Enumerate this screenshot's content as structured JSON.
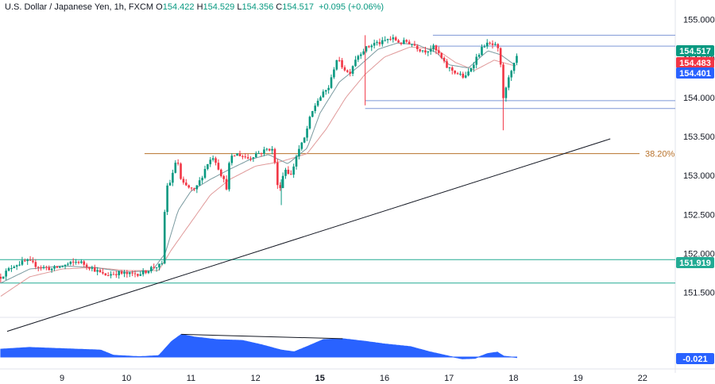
{
  "header": {
    "symbol": "U.S. Dollar / Japanese Yen, 1h, FXCM",
    "open_label": "O",
    "open": "154.422",
    "high_label": "H",
    "high": "154.529",
    "low_label": "L",
    "low": "154.356",
    "close_label": "C",
    "close": "154.517",
    "change": "+0.095 (+0.06%)"
  },
  "chart_data": {
    "type": "candlestick",
    "title": "U.S. Dollar / Japanese Yen, 1h, FXCM",
    "ylim": [
      151.2,
      155.15
    ],
    "y_ticks": [
      155.0,
      154.5,
      154.0,
      153.5,
      153.0,
      152.5,
      152.0,
      151.5
    ],
    "y_tick_labels": [
      "155.000",
      "154.500",
      "154.000",
      "153.500",
      "153.000",
      "152.500",
      "152.000",
      "151.500"
    ],
    "x_ticks": [
      {
        "label": "9",
        "day_index": 0
      },
      {
        "label": "10",
        "day_index": 1
      },
      {
        "label": "11",
        "day_index": 2
      },
      {
        "label": "12",
        "day_index": 3
      },
      {
        "label": "15",
        "day_index": 4,
        "bold": true
      },
      {
        "label": "16",
        "day_index": 5
      },
      {
        "label": "17",
        "day_index": 6
      },
      {
        "label": "18",
        "day_index": 7
      },
      {
        "label": "19",
        "day_index": 8
      },
      {
        "label": "22",
        "day_index": 9
      }
    ],
    "price_path": [
      [
        -0.95,
        151.7
      ],
      [
        -0.75,
        151.85
      ],
      [
        -0.55,
        151.9
      ],
      [
        -0.35,
        151.83
      ],
      [
        -0.15,
        151.8
      ],
      [
        0.05,
        151.85
      ],
      [
        0.25,
        151.9
      ],
      [
        0.45,
        151.82
      ],
      [
        0.65,
        151.72
      ],
      [
        0.85,
        151.75
      ],
      [
        1.05,
        151.73
      ],
      [
        1.25,
        151.75
      ],
      [
        1.4,
        151.82
      ],
      [
        1.55,
        151.85
      ],
      [
        1.58,
        152.4
      ],
      [
        1.62,
        152.85
      ],
      [
        1.7,
        152.95
      ],
      [
        1.78,
        153.25
      ],
      [
        1.85,
        152.9
      ],
      [
        1.95,
        152.85
      ],
      [
        2.05,
        152.8
      ],
      [
        2.15,
        152.95
      ],
      [
        2.25,
        153.15
      ],
      [
        2.35,
        153.25
      ],
      [
        2.45,
        153.05
      ],
      [
        2.55,
        152.85
      ],
      [
        2.6,
        153.2
      ],
      [
        2.7,
        153.28
      ],
      [
        2.8,
        153.25
      ],
      [
        2.9,
        153.22
      ],
      [
        3.0,
        153.28
      ],
      [
        3.1,
        153.3
      ],
      [
        3.2,
        153.35
      ],
      [
        3.28,
        153.32
      ],
      [
        3.35,
        152.8
      ],
      [
        3.4,
        152.9
      ],
      [
        3.45,
        153.1
      ],
      [
        3.55,
        153.0
      ],
      [
        3.65,
        153.3
      ],
      [
        3.75,
        153.45
      ],
      [
        3.85,
        153.75
      ],
      [
        3.95,
        153.95
      ],
      [
        4.05,
        154.05
      ],
      [
        4.15,
        154.15
      ],
      [
        4.25,
        154.5
      ],
      [
        4.35,
        154.4
      ],
      [
        4.45,
        154.3
      ],
      [
        4.55,
        154.5
      ],
      [
        4.65,
        154.6
      ],
      [
        4.75,
        154.65
      ],
      [
        4.85,
        154.7
      ],
      [
        4.95,
        154.7
      ],
      [
        5.05,
        154.75
      ],
      [
        5.15,
        154.75
      ],
      [
        5.25,
        154.7
      ],
      [
        5.35,
        154.72
      ],
      [
        5.45,
        154.68
      ],
      [
        5.55,
        154.62
      ],
      [
        5.65,
        154.6
      ],
      [
        5.75,
        154.65
      ],
      [
        5.85,
        154.55
      ],
      [
        5.95,
        154.4
      ],
      [
        6.05,
        154.35
      ],
      [
        6.15,
        154.3
      ],
      [
        6.25,
        154.25
      ],
      [
        6.35,
        154.4
      ],
      [
        6.45,
        154.55
      ],
      [
        6.55,
        154.68
      ],
      [
        6.65,
        154.68
      ],
      [
        6.75,
        154.65
      ],
      [
        6.8,
        154.4
      ],
      [
        6.85,
        153.92
      ],
      [
        6.9,
        154.2
      ],
      [
        6.95,
        154.35
      ],
      [
        7.0,
        154.4
      ],
      [
        7.05,
        154.52
      ]
    ],
    "sma_fast_path": [
      [
        -0.95,
        151.62
      ],
      [
        -0.5,
        151.8
      ],
      [
        0.0,
        151.84
      ],
      [
        0.5,
        151.82
      ],
      [
        1.0,
        151.76
      ],
      [
        1.4,
        151.78
      ],
      [
        1.6,
        152.0
      ],
      [
        1.8,
        152.55
      ],
      [
        2.0,
        152.8
      ],
      [
        2.3,
        152.95
      ],
      [
        2.6,
        153.08
      ],
      [
        2.9,
        153.2
      ],
      [
        3.2,
        153.27
      ],
      [
        3.5,
        153.15
      ],
      [
        3.8,
        153.35
      ],
      [
        4.0,
        153.8
      ],
      [
        4.3,
        154.2
      ],
      [
        4.6,
        154.4
      ],
      [
        4.9,
        154.62
      ],
      [
        5.2,
        154.7
      ],
      [
        5.5,
        154.68
      ],
      [
        5.8,
        154.58
      ],
      [
        6.0,
        154.42
      ],
      [
        6.3,
        154.38
      ],
      [
        6.6,
        154.6
      ],
      [
        6.8,
        154.55
      ],
      [
        7.05,
        154.4
      ]
    ],
    "sma_slow_path": [
      [
        -0.95,
        151.45
      ],
      [
        -0.5,
        151.7
      ],
      [
        0.0,
        151.8
      ],
      [
        0.5,
        151.82
      ],
      [
        1.0,
        151.78
      ],
      [
        1.5,
        151.78
      ],
      [
        1.7,
        152.05
      ],
      [
        2.0,
        152.4
      ],
      [
        2.3,
        152.75
      ],
      [
        2.6,
        152.95
      ],
      [
        3.0,
        153.12
      ],
      [
        3.4,
        153.18
      ],
      [
        3.8,
        153.28
      ],
      [
        4.1,
        153.6
      ],
      [
        4.4,
        154.0
      ],
      [
        4.7,
        154.3
      ],
      [
        5.0,
        154.52
      ],
      [
        5.4,
        154.65
      ],
      [
        5.8,
        154.62
      ],
      [
        6.1,
        154.45
      ],
      [
        6.4,
        154.35
      ],
      [
        6.7,
        154.48
      ],
      [
        7.05,
        154.4
      ]
    ],
    "levels": {
      "resistance_top": [
        154.8,
        154.66
      ],
      "support_zone": [
        153.96,
        153.86
      ],
      "fib_level": 153.28,
      "fib_label": "38.20%",
      "support_low": [
        151.92,
        151.62
      ]
    },
    "trendline": [
      [
        -0.85,
        151.0
      ],
      [
        8.5,
        153.47
      ]
    ],
    "indicator": {
      "type": "area",
      "label": "-0.021",
      "path": [
        [
          -0.95,
          0.45
        ],
        [
          -0.5,
          0.55
        ],
        [
          0.0,
          0.48
        ],
        [
          0.6,
          0.4
        ],
        [
          0.8,
          0.1
        ],
        [
          1.2,
          0.02
        ],
        [
          1.5,
          0.08
        ],
        [
          1.7,
          0.9
        ],
        [
          1.85,
          1.3
        ],
        [
          2.05,
          1.15
        ],
        [
          2.4,
          1.0
        ],
        [
          2.8,
          0.95
        ],
        [
          3.1,
          0.7
        ],
        [
          3.4,
          0.4
        ],
        [
          3.6,
          0.3
        ],
        [
          3.8,
          0.6
        ],
        [
          4.05,
          1.0
        ],
        [
          4.35,
          1.05
        ],
        [
          4.7,
          0.9
        ],
        [
          5.0,
          0.75
        ],
        [
          5.4,
          0.6
        ],
        [
          5.7,
          0.3
        ],
        [
          6.0,
          0.05
        ],
        [
          6.2,
          -0.1
        ],
        [
          6.4,
          -0.08
        ],
        [
          6.6,
          0.2
        ],
        [
          6.75,
          0.28
        ],
        [
          6.85,
          0.05
        ],
        [
          7.05,
          -0.03
        ]
      ],
      "peak_line": [
        [
          1.85,
          1.3
        ],
        [
          4.35,
          1.05
        ]
      ]
    },
    "price_labels": [
      {
        "value": "154.517",
        "color": "#089981"
      },
      {
        "value": "154.483",
        "color": "#f23645"
      },
      {
        "value": "154.401",
        "color": "#2962ff"
      },
      {
        "value": "151.919",
        "color": "#22ab94"
      },
      {
        "value": "-0.021",
        "color": "#2962ff"
      }
    ],
    "colors": {
      "up": "#089981",
      "down": "#f23645",
      "sma_fast": "#7a9aa0",
      "sma_slow": "#e09a9a",
      "fib": "#b8722c",
      "level": "#7e97d6",
      "support": "#22ab94",
      "indicator": "#2962ff"
    },
    "grid": false
  }
}
